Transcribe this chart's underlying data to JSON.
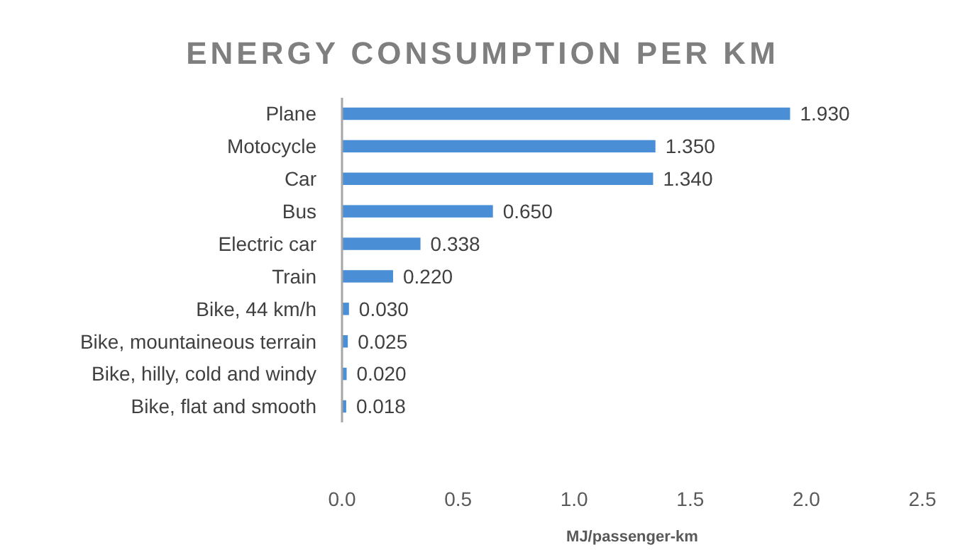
{
  "chart_data": {
    "type": "bar",
    "orientation": "horizontal",
    "title": "ENERGY CONSUMPTION PER KM",
    "xlabel": "MJ/passenger-km",
    "categories": [
      "Plane",
      "Motocycle",
      "Car",
      "Bus",
      "Electric car",
      "Train",
      "Bike, 44 km/h",
      "Bike, mountaineous terrain",
      "Bike, hilly, cold and windy",
      "Bike, flat and smooth"
    ],
    "values": [
      1.93,
      1.35,
      1.34,
      0.65,
      0.338,
      0.22,
      0.03,
      0.025,
      0.02,
      0.018
    ],
    "value_labels": [
      "1.930",
      "1.350",
      "1.340",
      "0.650",
      "0.338",
      "0.220",
      "0.030",
      "0.025",
      "0.020",
      "0.018"
    ],
    "color": "#4a8fd6",
    "xlim": [
      0,
      2.5
    ],
    "xticks": [
      {
        "value": 0,
        "label": "0.0"
      },
      {
        "value": 0.5,
        "label": "0.5"
      },
      {
        "value": 1,
        "label": "1.0"
      },
      {
        "value": 1.5,
        "label": "1.5"
      },
      {
        "value": 2,
        "label": "2.0"
      },
      {
        "value": 2.5,
        "label": "2.5"
      }
    ],
    "grid": false
  }
}
